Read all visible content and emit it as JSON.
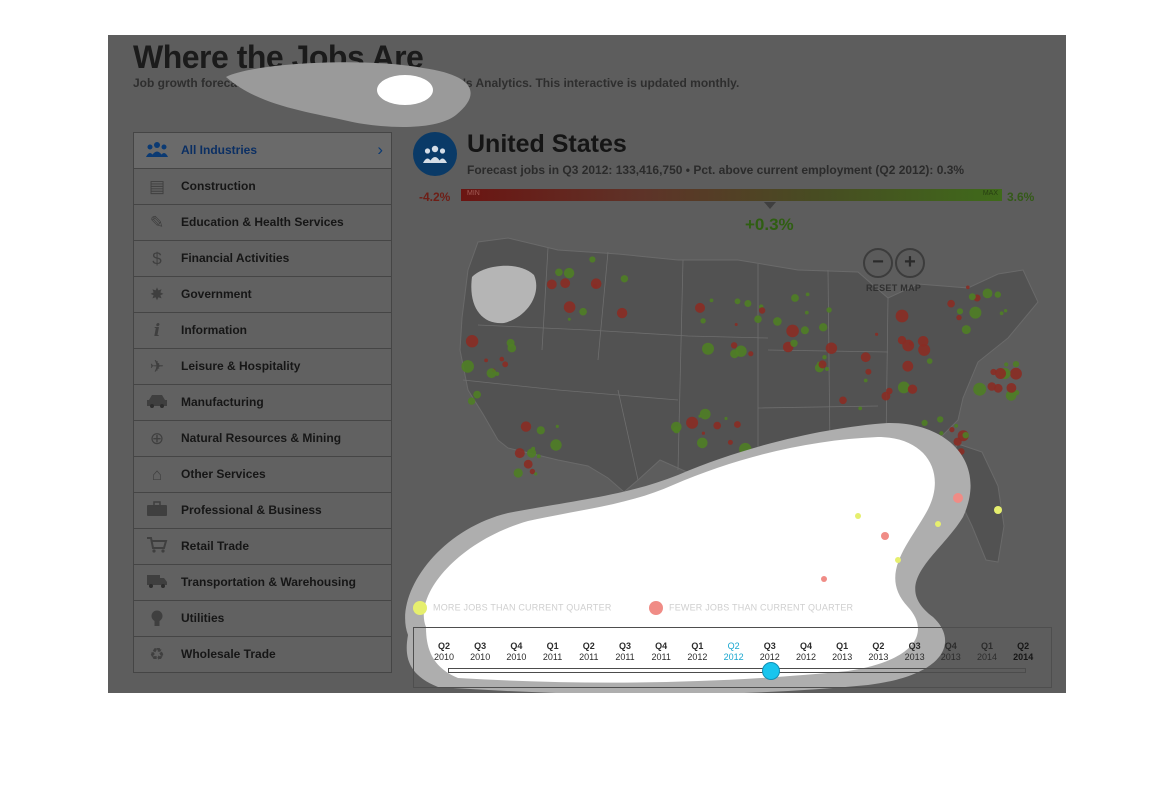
{
  "header": {
    "title": "Where the Jobs Are",
    "subtitle": "Job growth forecasts by economic consulting firm Moody's Analytics. This interactive is updated monthly."
  },
  "sidebar": {
    "items": [
      {
        "label": "All Industries",
        "icon": "people-icon",
        "active": true
      },
      {
        "label": "Construction",
        "icon": "barrier-icon"
      },
      {
        "label": "Education & Health Services",
        "icon": "pen-icon"
      },
      {
        "label": "Financial Activities",
        "icon": "dollar-icon"
      },
      {
        "label": "Government",
        "icon": "star-badge-icon"
      },
      {
        "label": "Information",
        "icon": "info-icon"
      },
      {
        "label": "Leisure & Hospitality",
        "icon": "airplane-icon"
      },
      {
        "label": "Manufacturing",
        "icon": "car-icon"
      },
      {
        "label": "Natural Resources & Mining",
        "icon": "crosshair-icon"
      },
      {
        "label": "Other Services",
        "icon": "house-icon"
      },
      {
        "label": "Professional & Business",
        "icon": "briefcase-icon"
      },
      {
        "label": "Retail Trade",
        "icon": "cart-icon"
      },
      {
        "label": "Transportation & Warehousing",
        "icon": "truck-icon"
      },
      {
        "label": "Utilities",
        "icon": "lightbulb-icon"
      },
      {
        "label": "Wholesale Trade",
        "icon": "recycle-icon"
      }
    ],
    "chevron": "›"
  },
  "region": {
    "title": "United States",
    "subtitle": "Forecast jobs in Q3 2012: 133,416,750 • Pct. above current employment (Q2 2012): 0.3%"
  },
  "scale": {
    "min_value": "-4.2%",
    "max_value": "3.6%",
    "min_label": "MIN",
    "max_label": "MAX",
    "current_value": "+0.3%",
    "current_number": 0.3,
    "range": [
      -4.2,
      3.6
    ],
    "low_color": "#6b1512",
    "high_color": "#3f6a1a"
  },
  "map_controls": {
    "zoom_out": "−",
    "zoom_in": "+",
    "reset_label": "RESET MAP"
  },
  "legend": {
    "more": "MORE JOBS THAN CURRENT QUARTER",
    "fewer": "FEWER JOBS THAN CURRENT QUARTER",
    "more_color": "#e6ef6e",
    "fewer_color": "#f08c86"
  },
  "timeline": {
    "items": [
      {
        "q": "Q2",
        "y": "2010"
      },
      {
        "q": "Q3",
        "y": "2010"
      },
      {
        "q": "Q4",
        "y": "2010"
      },
      {
        "q": "Q1",
        "y": "2011"
      },
      {
        "q": "Q2",
        "y": "2011"
      },
      {
        "q": "Q3",
        "y": "2011"
      },
      {
        "q": "Q4",
        "y": "2011"
      },
      {
        "q": "Q1",
        "y": "2012"
      },
      {
        "q": "Q2",
        "y": "2012",
        "current": true
      },
      {
        "q": "Q3",
        "y": "2012"
      },
      {
        "q": "Q4",
        "y": "2012"
      },
      {
        "q": "Q1",
        "y": "2013"
      },
      {
        "q": "Q2",
        "y": "2013"
      },
      {
        "q": "Q3",
        "y": "2013"
      },
      {
        "q": "Q4",
        "y": "2013"
      },
      {
        "q": "Q1",
        "y": "2014"
      },
      {
        "q": "Q2",
        "y": "2014",
        "bold": true
      }
    ],
    "selected_index": 9,
    "accent_color": "#19c5ee"
  }
}
